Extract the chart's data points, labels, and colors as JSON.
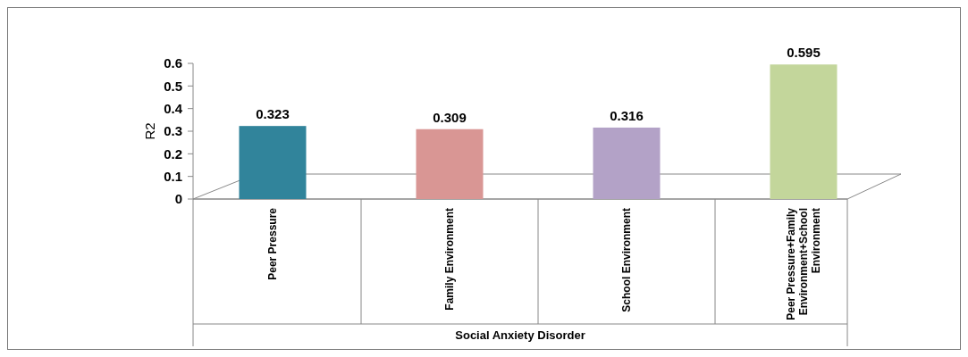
{
  "chart_data": {
    "type": "bar",
    "xlabel": "Social Anxiety Disorder",
    "ylabel": "R2",
    "categories": [
      "Peer Pressure",
      "Family Environment",
      "School Environment",
      "Peer Pressure+Family Environment+School Environment"
    ],
    "values": [
      0.323,
      0.309,
      0.316,
      0.595
    ],
    "colors": [
      "#31849b",
      "#d99694",
      "#b3a2c7",
      "#c3d69b"
    ],
    "ylim": [
      0,
      0.6
    ],
    "yticks": [
      0,
      0.1,
      0.2,
      0.3,
      0.4,
      0.5,
      0.6
    ],
    "data_labels": true,
    "grid": false
  }
}
